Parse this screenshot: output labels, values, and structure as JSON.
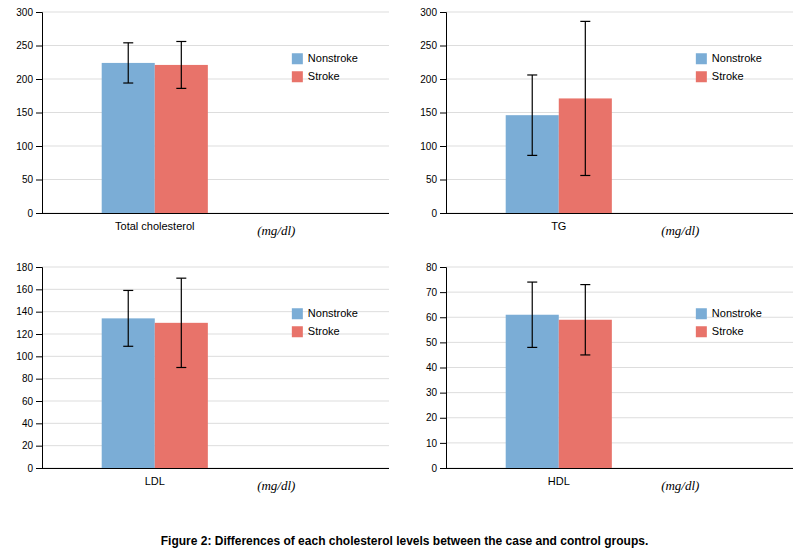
{
  "caption": "Figure 2: Differences of each cholesterol levels between the case and control groups.",
  "chart_data": [
    {
      "type": "bar",
      "categories": [
        "Total cholesterol"
      ],
      "series": [
        {
          "name": "Nonstroke",
          "color": "#7BADD6",
          "values": [
            224
          ],
          "errors": [
            30
          ]
        },
        {
          "name": "Stroke",
          "color": "#E8736A",
          "values": [
            221
          ],
          "errors": [
            35
          ]
        }
      ],
      "annotations": [
        "(mg/dl)"
      ],
      "ylim": [
        0,
        300
      ],
      "yticks": [
        0,
        50,
        100,
        150,
        200,
        250,
        300
      ],
      "grid": true,
      "legend": "upper right"
    },
    {
      "type": "bar",
      "categories": [
        "TG"
      ],
      "series": [
        {
          "name": "Nonstroke",
          "color": "#7BADD6",
          "values": [
            146
          ],
          "errors": [
            60
          ]
        },
        {
          "name": "Stroke",
          "color": "#E8736A",
          "values": [
            171
          ],
          "errors": [
            115
          ]
        }
      ],
      "annotations": [
        "(mg/dl)"
      ],
      "ylim": [
        0,
        300
      ],
      "yticks": [
        0,
        50,
        100,
        150,
        200,
        250,
        300
      ],
      "grid": true,
      "legend": "upper right"
    },
    {
      "type": "bar",
      "categories": [
        "LDL"
      ],
      "series": [
        {
          "name": "Nonstroke",
          "color": "#7BADD6",
          "values": [
            134
          ],
          "errors": [
            25
          ]
        },
        {
          "name": "Stroke",
          "color": "#E8736A",
          "values": [
            130
          ],
          "errors": [
            40
          ]
        }
      ],
      "annotations": [
        "(mg/dl)"
      ],
      "ylim": [
        0,
        180
      ],
      "yticks": [
        0,
        20,
        40,
        60,
        80,
        100,
        120,
        140,
        160,
        180
      ],
      "grid": true,
      "legend": "upper right"
    },
    {
      "type": "bar",
      "categories": [
        "HDL"
      ],
      "series": [
        {
          "name": "Nonstroke",
          "color": "#7BADD6",
          "values": [
            61
          ],
          "errors": [
            13
          ]
        },
        {
          "name": "Stroke",
          "color": "#E8736A",
          "values": [
            59
          ],
          "errors": [
            14
          ]
        }
      ],
      "annotations": [
        "(mg/dl)"
      ],
      "ylim": [
        0,
        80
      ],
      "yticks": [
        0,
        10,
        20,
        30,
        40,
        50,
        60,
        70,
        80
      ],
      "grid": true,
      "legend": "upper right"
    }
  ]
}
